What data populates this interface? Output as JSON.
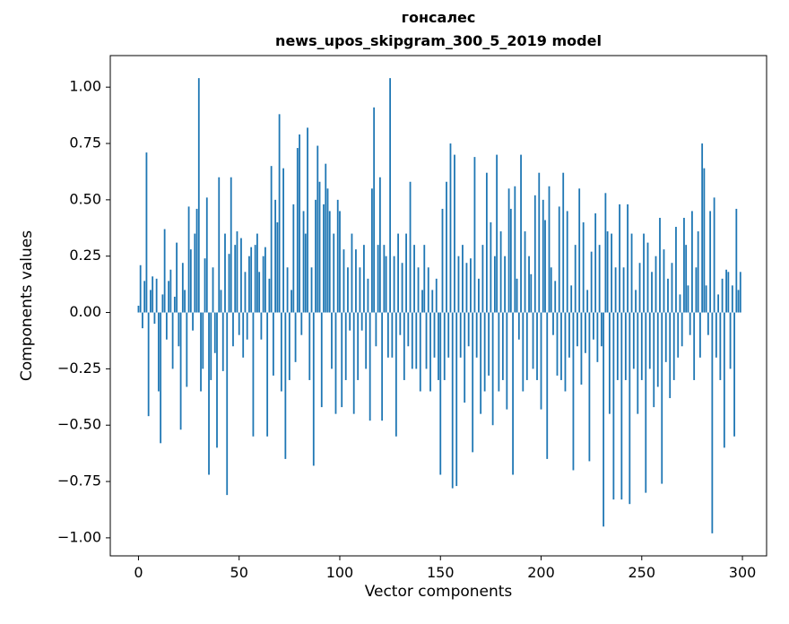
{
  "chart_data": {
    "type": "bar",
    "title_line1": "гонсалес",
    "title_line2": "news_upos_skipgram_300_5_2019 model",
    "xlabel": "Vector components",
    "ylabel": "Components values",
    "bar_color": "#1f77b4",
    "xlim": [
      -14,
      312
    ],
    "ylim": [
      -1.08,
      1.14
    ],
    "x_ticks": [
      {
        "v": 0,
        "label": "0"
      },
      {
        "v": 50,
        "label": "50"
      },
      {
        "v": 100,
        "label": "100"
      },
      {
        "v": 150,
        "label": "150"
      },
      {
        "v": 200,
        "label": "200"
      },
      {
        "v": 250,
        "label": "250"
      },
      {
        "v": 300,
        "label": "300"
      }
    ],
    "y_ticks": [
      {
        "v": 1.0,
        "label": "1.00"
      },
      {
        "v": 0.75,
        "label": "0.75"
      },
      {
        "v": 0.5,
        "label": "0.50"
      },
      {
        "v": 0.25,
        "label": "0.25"
      },
      {
        "v": 0.0,
        "label": "0.00"
      },
      {
        "v": -0.25,
        "label": "−0.25"
      },
      {
        "v": -0.5,
        "label": "−0.50"
      },
      {
        "v": -0.75,
        "label": "−0.75"
      },
      {
        "v": -1.0,
        "label": "−1.00"
      }
    ],
    "x_start": 0,
    "values": [
      0.03,
      0.21,
      -0.07,
      0.14,
      0.71,
      -0.46,
      0.1,
      0.16,
      -0.05,
      0.15,
      -0.35,
      -0.58,
      0.08,
      0.37,
      -0.12,
      0.14,
      0.19,
      -0.25,
      0.07,
      0.31,
      -0.15,
      -0.52,
      0.22,
      0.1,
      -0.33,
      0.47,
      0.28,
      -0.08,
      0.35,
      0.46,
      1.04,
      -0.35,
      -0.25,
      0.24,
      0.51,
      -0.72,
      -0.3,
      0.2,
      -0.18,
      -0.6,
      0.6,
      0.1,
      -0.26,
      0.35,
      -0.81,
      0.26,
      0.6,
      -0.15,
      0.3,
      0.36,
      -0.1,
      0.33,
      -0.2,
      0.18,
      -0.12,
      0.25,
      0.29,
      -0.55,
      0.3,
      0.35,
      0.18,
      -0.12,
      0.25,
      0.29,
      -0.55,
      0.15,
      0.65,
      -0.28,
      0.5,
      0.4,
      0.88,
      -0.35,
      0.64,
      -0.65,
      0.2,
      -0.3,
      0.1,
      0.48,
      -0.22,
      0.73,
      0.79,
      -0.1,
      0.45,
      0.35,
      0.82,
      -0.3,
      0.2,
      -0.68,
      0.5,
      0.74,
      0.58,
      -0.42,
      0.48,
      0.66,
      0.55,
      0.45,
      -0.25,
      0.35,
      -0.45,
      0.5,
      0.45,
      -0.42,
      0.28,
      -0.3,
      0.2,
      -0.08,
      0.35,
      -0.45,
      0.28,
      -0.3,
      0.2,
      -0.08,
      0.3,
      -0.25,
      0.15,
      -0.48,
      0.55,
      0.91,
      -0.15,
      0.3,
      0.6,
      -0.48,
      0.3,
      0.25,
      -0.2,
      1.04,
      -0.2,
      0.25,
      -0.55,
      0.35,
      -0.1,
      0.22,
      -0.3,
      0.35,
      -0.15,
      0.58,
      -0.25,
      0.3,
      -0.25,
      0.2,
      -0.35,
      0.1,
      0.3,
      -0.25,
      0.2,
      -0.35,
      0.1,
      -0.2,
      0.15,
      -0.3,
      -0.72,
      0.46,
      -0.3,
      0.58,
      -0.2,
      0.75,
      -0.78,
      0.7,
      -0.77,
      0.25,
      -0.2,
      0.3,
      -0.4,
      0.22,
      -0.15,
      0.24,
      -0.62,
      0.69,
      -0.2,
      0.15,
      -0.45,
      0.3,
      -0.35,
      0.62,
      -0.28,
      0.4,
      -0.5,
      0.25,
      0.7,
      -0.35,
      0.36,
      -0.3,
      0.25,
      -0.43,
      0.55,
      0.46,
      -0.72,
      0.56,
      0.15,
      -0.12,
      0.7,
      -0.35,
      0.36,
      -0.3,
      0.25,
      0.17,
      -0.25,
      0.52,
      -0.3,
      0.62,
      -0.43,
      0.5,
      0.41,
      -0.65,
      0.56,
      0.2,
      -0.1,
      0.14,
      -0.28,
      0.47,
      -0.3,
      0.62,
      -0.35,
      0.45,
      -0.2,
      0.12,
      -0.7,
      0.3,
      -0.15,
      0.55,
      -0.32,
      0.4,
      -0.18,
      0.1,
      -0.66,
      0.27,
      -0.12,
      0.44,
      -0.22,
      0.3,
      -0.15,
      -0.95,
      0.53,
      0.36,
      -0.45,
      0.35,
      -0.83,
      0.2,
      -0.3,
      0.48,
      -0.83,
      0.2,
      -0.3,
      0.48,
      -0.85,
      0.35,
      -0.25,
      0.1,
      -0.45,
      0.22,
      -0.3,
      0.35,
      -0.8,
      0.31,
      -0.25,
      0.18,
      -0.42,
      0.25,
      -0.33,
      0.42,
      -0.76,
      0.28,
      -0.22,
      0.15,
      -0.38,
      0.22,
      -0.3,
      0.38,
      -0.2,
      0.08,
      -0.15,
      0.42,
      0.3,
      0.12,
      -0.1,
      0.45,
      -0.3,
      0.2,
      0.36,
      -0.2,
      0.75,
      0.64,
      0.12,
      -0.1,
      0.45,
      -0.98,
      0.51,
      -0.2,
      0.08,
      -0.3,
      0.15,
      -0.6,
      0.19,
      0.18,
      -0.25,
      0.12,
      -0.55,
      0.46,
      0.1,
      0.18
    ]
  }
}
